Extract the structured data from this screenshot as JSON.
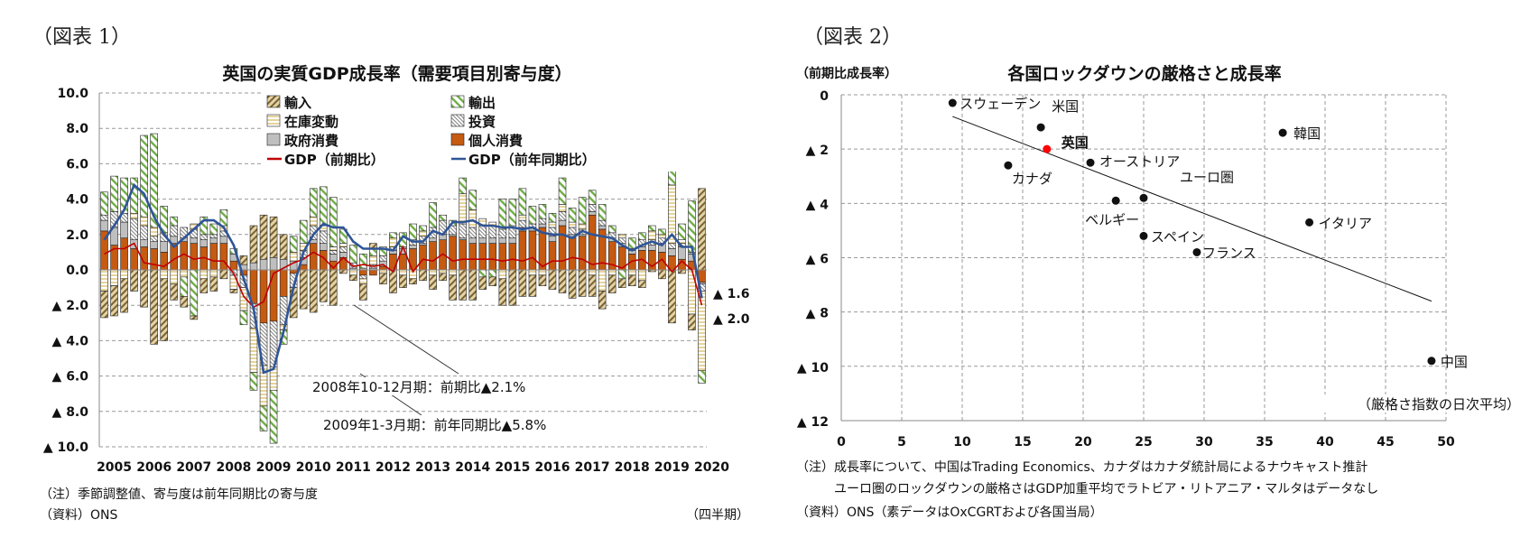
{
  "figure1": {
    "label": "（図表 1）",
    "chart_data": {
      "type": "bar",
      "stacked": true,
      "title": "英国の実質GDP成長率（需要項目別寄与度）",
      "xlabel": "（四半期）",
      "x_tick_labels": [
        "2005",
        "2006",
        "2007",
        "2008",
        "2009",
        "2010",
        "2011",
        "2012",
        "2013",
        "2014",
        "2015",
        "2016",
        "2017",
        "2018",
        "2019",
        "2020"
      ],
      "y_tick_labels": [
        "10.0",
        "8.0",
        "6.0",
        "4.0",
        "2.0",
        "0.0",
        "▲ 2.0",
        "▲ 4.0",
        "▲ 6.0",
        "▲ 8.0",
        "▲ 10.0"
      ],
      "ylim": [
        -10,
        10
      ],
      "grid": true,
      "legend_position": "top",
      "period": "2005Q1-2020Q1 quarterly",
      "series": [
        {
          "name": "輸入",
          "key": "imports",
          "kind": "bar",
          "color": "#c8b078",
          "values": [
            -1.5,
            -1.7,
            -1.9,
            -1.2,
            -2.1,
            -4.2,
            -3.5,
            -0.9,
            -0.6,
            -0.2,
            -0.8,
            -0.8,
            -0.5,
            -0.2,
            0.5,
            2.1,
            2.5,
            2.3,
            1.4,
            -1.7,
            -2.2,
            -2.4,
            -1.8,
            -2.0,
            -0.2,
            -0.3,
            -0.9,
            0.3,
            -0.6,
            -1.3,
            -0.7,
            -0.3,
            -0.6,
            -0.8,
            -0.4,
            -1.4,
            -1.7,
            -1.7,
            -0.7,
            -0.5,
            -1.5,
            -2.0,
            -1.5,
            -1.2,
            -0.6,
            -1.1,
            -1.3,
            -1.6,
            -1.5,
            -1.2,
            -1.0,
            -1.0,
            -0.5,
            -0.6,
            -0.4,
            -0.1,
            -0.5,
            -3.0,
            -0.2,
            -0.9,
            4.6
          ]
        },
        {
          "name": "輸出",
          "key": "exports",
          "kind": "bar",
          "color": "#7fb05a",
          "values": [
            1.3,
            2.0,
            2.0,
            2.0,
            4.6,
            5.3,
            1.5,
            0.5,
            -1.1,
            -2.6,
            1.0,
            0.6,
            0.9,
            0.3,
            -0.8,
            -1.0,
            -1.4,
            -3.0,
            -0.8,
            0.9,
            1.3,
            1.6,
            2.2,
            2.8,
            0.8,
            1.0,
            0.8,
            0.4,
            0.5,
            0.3,
            0.8,
            0.9,
            0.3,
            1.4,
            0.3,
            0.3,
            0.9,
            1.1,
            -0.4,
            -0.4,
            1.7,
            1.5,
            1.5,
            1.0,
            0.8,
            0.5,
            1.5,
            0.8,
            1.5,
            0.8,
            0.9,
            0.4,
            -0.5,
            0.6,
            0.4,
            0.3,
            0.3,
            1.1,
            0.9,
            2.9,
            -0.7
          ]
        },
        {
          "name": "在庫変動",
          "key": "inventory",
          "kind": "bar",
          "color": "#f2e6c0",
          "values": [
            -1.2,
            -0.9,
            -0.5,
            0.3,
            0.5,
            0.5,
            -0.5,
            -0.8,
            -0.4,
            0.3,
            -0.5,
            -0.4,
            0.3,
            -0.8,
            -1.3,
            -2.5,
            -2.3,
            -1.3,
            -0.3,
            0.5,
            0.4,
            0.5,
            0.3,
            0.2,
            0.2,
            -0.3,
            -0.3,
            0.5,
            -0.2,
            0.5,
            -0.3,
            -0.5,
            0.3,
            -0.3,
            -0.2,
            -0.3,
            1.7,
            1.0,
            0.4,
            0.2,
            -0.5,
            0.1,
            0.3,
            -0.3,
            -0.3,
            0.3,
            0.4,
            0.3,
            0.3,
            -0.3,
            -1.2,
            -0.3,
            0.2,
            -0.3,
            -0.6,
            0.5,
            0.2,
            3.3,
            0.2,
            -2.5,
            -4.5
          ]
        },
        {
          "name": "投資",
          "key": "investment",
          "kind": "bar",
          "color": "#a0a0a0",
          "values": [
            0.3,
            0.9,
            0.5,
            1.2,
            0.8,
            0.3,
            0.5,
            0.6,
            0.6,
            0.5,
            0.3,
            0.2,
            0.3,
            -0.3,
            -0.7,
            -1.4,
            -2.4,
            -2.6,
            -1.6,
            -0.8,
            0.4,
            0.8,
            0.7,
            0.2,
            0.3,
            0.3,
            -0.2,
            0.2,
            0.3,
            0.2,
            0.1,
            0.3,
            0.4,
            0.6,
            0.8,
            0.5,
            0.8,
            0.6,
            0.7,
            0.7,
            0.5,
            0.6,
            0.4,
            0.2,
            0.3,
            0.5,
            0.5,
            0.4,
            0.3,
            0.4,
            0.3,
            0.3,
            0.3,
            0.1,
            0.4,
            0.3,
            0.3,
            0.3,
            0.2,
            0.1,
            -0.4
          ]
        },
        {
          "name": "政府消費",
          "key": "government",
          "kind": "bar",
          "color": "#bfbfbf",
          "values": [
            0.6,
            1.0,
            0.9,
            0.5,
            0.4,
            0.4,
            0.6,
            0.4,
            0.2,
            0.3,
            0.4,
            0.3,
            0.4,
            0.4,
            0.3,
            0.4,
            0.6,
            0.7,
            0.6,
            0.5,
            0.4,
            0.2,
            0.4,
            0.4,
            0.3,
            0.1,
            0.1,
            0.1,
            0.3,
            0.2,
            0.3,
            0.2,
            0.1,
            0.2,
            0.3,
            0.1,
            0.1,
            0.3,
            0.3,
            0.3,
            0.3,
            0.3,
            0.2,
            0.2,
            0.2,
            0.3,
            0.3,
            0.2,
            0.1,
            0.2,
            0.2,
            0.2,
            0.2,
            0.2,
            0.2,
            0.3,
            0.5,
            0.4,
            0.7,
            0.4,
            -0.1
          ]
        },
        {
          "name": "個人消費",
          "key": "consumption",
          "kind": "bar",
          "color": "#c55a11",
          "values": [
            2.2,
            1.4,
            1.8,
            1.2,
            1.3,
            1.2,
            1.0,
            1.5,
            1.6,
            1.5,
            1.3,
            1.5,
            1.5,
            0.5,
            -0.3,
            -1.9,
            -3.0,
            -2.9,
            -1.5,
            -0.2,
            0.3,
            1.5,
            1.1,
            0.5,
            0.7,
            0.0,
            -0.3,
            -0.3,
            0.2,
            0.9,
            0.9,
            1.2,
            1.4,
            1.6,
            1.7,
            1.9,
            1.7,
            1.5,
            1.5,
            1.5,
            1.5,
            1.5,
            2.2,
            2.2,
            2.4,
            1.6,
            2.5,
            1.8,
            1.9,
            3.1,
            2.3,
            1.6,
            1.3,
            0.9,
            1.1,
            1.1,
            1.0,
            0.8,
            0.6,
            0.5,
            -0.7
          ]
        },
        {
          "name": "GDP（前期比）",
          "key": "gdp_qoq",
          "kind": "line",
          "color": "#c00000",
          "values": [
            0.9,
            1.2,
            1.2,
            1.5,
            0.4,
            0.3,
            0.2,
            0.6,
            0.9,
            0.6,
            0.7,
            0.5,
            0.5,
            -0.2,
            -1.5,
            -2.1,
            -1.8,
            -0.2,
            0.1,
            0.4,
            0.6,
            1.0,
            0.7,
            0.1,
            0.7,
            0.2,
            0.3,
            0.2,
            0.3,
            -0.1,
            1.3,
            -0.1,
            0.6,
            0.5,
            0.9,
            0.5,
            0.6,
            0.6,
            0.6,
            0.6,
            0.5,
            0.6,
            0.5,
            0.7,
            0.2,
            0.5,
            0.5,
            0.7,
            0.6,
            0.3,
            0.4,
            0.3,
            0.1,
            0.5,
            0.6,
            0.2,
            0.6,
            -0.1,
            0.5,
            0.0,
            -2.0
          ]
        },
        {
          "name": "GDP（前年同期比）",
          "key": "gdp_yoy",
          "kind": "line",
          "color": "#2f5597",
          "values": [
            1.7,
            2.5,
            3.4,
            4.8,
            4.3,
            3.0,
            2.0,
            1.3,
            1.8,
            2.3,
            2.8,
            2.8,
            2.4,
            1.4,
            -0.5,
            -2.2,
            -5.8,
            -5.6,
            -3.5,
            -1.0,
            1.0,
            2.0,
            2.6,
            2.4,
            2.4,
            1.6,
            1.2,
            1.2,
            1.2,
            1.1,
            1.9,
            1.6,
            1.6,
            2.2,
            2.0,
            2.7,
            2.7,
            2.8,
            2.5,
            2.5,
            2.4,
            2.4,
            2.3,
            2.4,
            2.1,
            2.0,
            2.0,
            1.8,
            2.2,
            2.0,
            1.9,
            1.8,
            1.4,
            1.1,
            1.4,
            1.6,
            1.4,
            2.0,
            1.3,
            1.3,
            -1.6
          ]
        }
      ],
      "end_labels": [
        "▲ 1.6",
        "▲ 2.0"
      ],
      "annotations": [
        "2008年10-12月期：前期比▲2.1%",
        "2009年1-3月期：前年同期比▲5.8%"
      ]
    },
    "notes": [
      "（注）季節調整値、寄与度は前年同期比の寄与度",
      "（資料）ONS"
    ]
  },
  "figure2": {
    "label": "（図表 2）",
    "chart_data": {
      "type": "scatter",
      "title": "各国ロックダウンの厳格さと成長率",
      "ylabel": "（前期比成長率）",
      "xlabel": "（厳格さ指数の日次平均）",
      "xlim": [
        0,
        50
      ],
      "ylim": [
        -12,
        0
      ],
      "x_tick_labels": [
        "0",
        "5",
        "10",
        "15",
        "20",
        "25",
        "30",
        "35",
        "40",
        "45",
        "50"
      ],
      "y_tick_labels": [
        "0",
        "▲ 2",
        "▲ 4",
        "▲ 6",
        "▲ 8",
        "▲ 10",
        "▲ 12"
      ],
      "grid": true,
      "highlight_color": "#ff0000",
      "points": [
        {
          "label": "スウェーデン",
          "x": 9.2,
          "y": -0.3
        },
        {
          "label": "米国",
          "x": 16.5,
          "y": -1.2
        },
        {
          "label": "英国",
          "x": 17.0,
          "y": -2.0,
          "highlight": true
        },
        {
          "label": "カナダ",
          "x": 13.8,
          "y": -2.6
        },
        {
          "label": "オーストリア",
          "x": 20.6,
          "y": -2.5
        },
        {
          "label": "ユーロ圏",
          "x": 25.0,
          "y": -3.8
        },
        {
          "label": "ベルギー",
          "x": 22.7,
          "y": -3.9
        },
        {
          "label": "スペイン",
          "x": 25.0,
          "y": -5.2
        },
        {
          "label": "フランス",
          "x": 29.4,
          "y": -5.8
        },
        {
          "label": "韓国",
          "x": 36.5,
          "y": -1.4
        },
        {
          "label": "イタリア",
          "x": 38.7,
          "y": -4.7
        },
        {
          "label": "中国",
          "x": 48.8,
          "y": -9.8
        }
      ],
      "trendline": {
        "x": [
          9.2,
          48.8
        ],
        "y": [
          -0.8,
          -7.6
        ]
      }
    },
    "notes": [
      "（注）成長率について、中国はTrading Economics、カナダはカナダ統計局によるナウキャスト推計",
      "ユーロ圏のロックダウンの厳格さはGDP加重平均でラトビア・リトアニア・マルタはデータなし",
      "（資料）ONS（素データはOxCGRTおよび各国当局）"
    ]
  }
}
